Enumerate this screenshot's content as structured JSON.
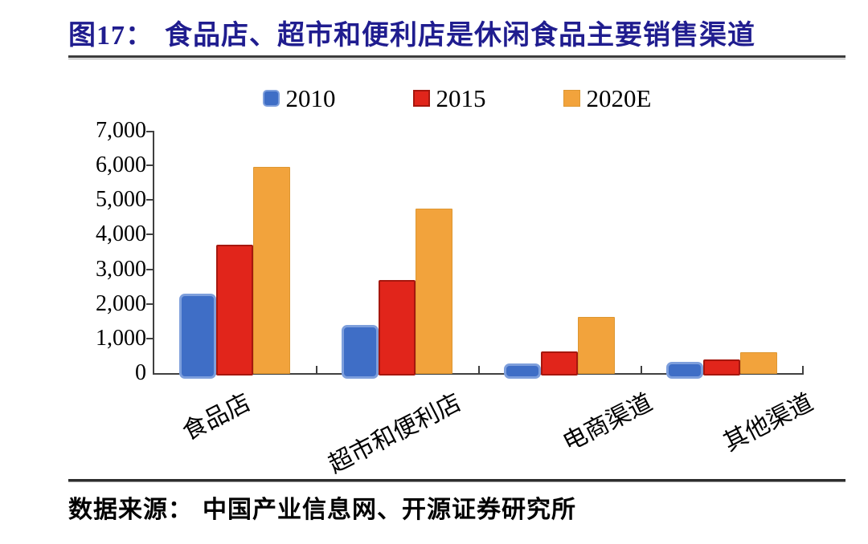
{
  "figure": {
    "number_label": "图17：",
    "title": "食品店、超市和便利店是休闲食品主要销售渠道",
    "source_label": "数据来源：",
    "source_text": "中国产业信息网、开源证券研究所"
  },
  "chart_data": {
    "type": "bar",
    "title": "食品店、超市和便利店是休闲食品主要销售渠道",
    "categories": [
      "食品店",
      "超市和便利店",
      "电商渠道",
      "其他渠道"
    ],
    "series": [
      {
        "name": "2010",
        "color": "#3F6EC6",
        "edge": "#7E9FDC",
        "values": [
          2300,
          1400,
          280,
          320
        ]
      },
      {
        "name": "2015",
        "color": "#E1251B",
        "edge": "#A6170E",
        "values": [
          3700,
          2700,
          620,
          390
        ]
      },
      {
        "name": "2020E",
        "color": "#F2A33C",
        "edge": "#DD9732",
        "values": [
          5950,
          4750,
          1630,
          600
        ]
      }
    ],
    "xlabel": "",
    "ylabel": "",
    "ylim": [
      0,
      7000
    ],
    "ytick_step": 1000,
    "ytick_labels": [
      "0",
      "1,000",
      "2,000",
      "3,000",
      "4,000",
      "5,000",
      "6,000",
      "7,000"
    ],
    "legend_position": "top",
    "grid": false,
    "category_label_rotation_deg": -27
  },
  "colors": {
    "title": "#201D8F",
    "axis": "#404040",
    "text": "#000000",
    "background": "#FFFFFF"
  }
}
